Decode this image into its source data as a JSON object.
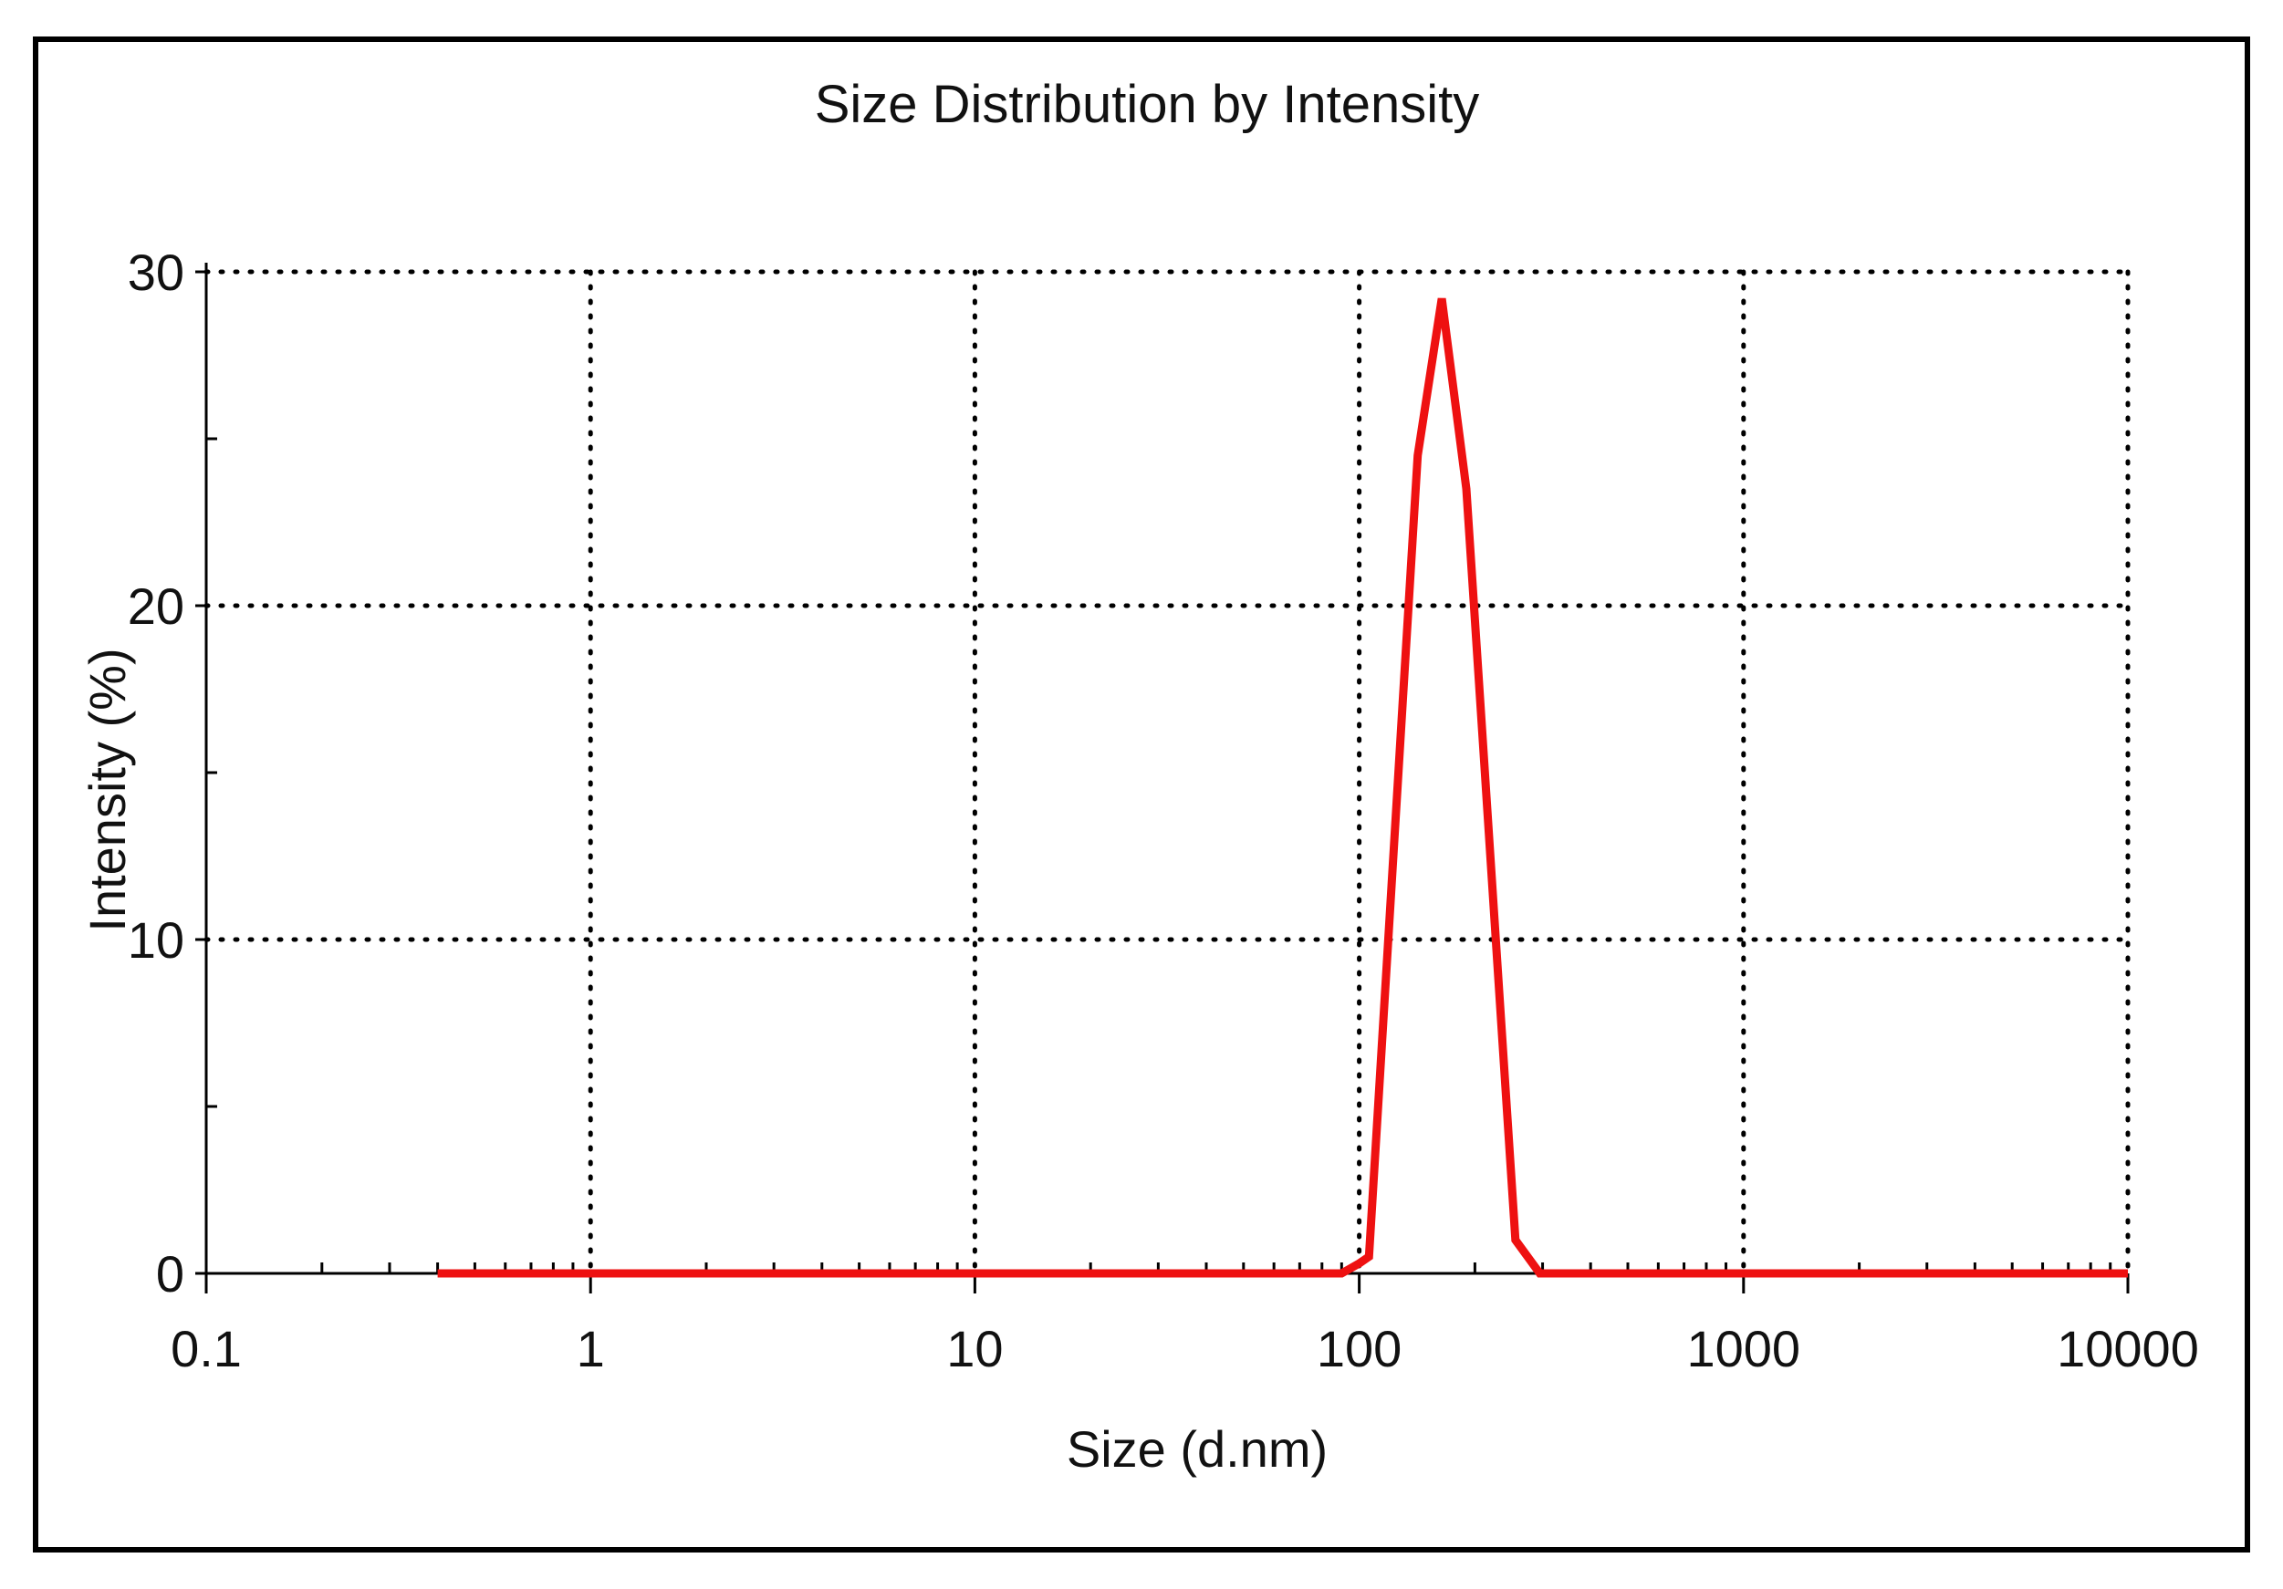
{
  "chart_data": {
    "type": "line",
    "title": "Size Distribution by Intensity",
    "xlabel": "Size (d.nm)",
    "ylabel": "Intensity (%)",
    "xscale": "log",
    "xlim": [
      0.1,
      10000
    ],
    "ylim": [
      0,
      30
    ],
    "x_ticks": [
      0.1,
      1,
      10,
      100,
      1000,
      10000
    ],
    "x_tick_labels": [
      "0.1",
      "1",
      "10",
      "100",
      "1000",
      "10000"
    ],
    "y_ticks": [
      0,
      10,
      20,
      30
    ],
    "y_tick_labels": [
      "0",
      "10",
      "20",
      "30"
    ],
    "grid": "dotted",
    "line_color": "#ee1111",
    "series": [
      {
        "name": "Intensity",
        "x": [
          0.4,
          90,
          100,
          106,
          142,
          164,
          190,
          255,
          295,
          10000
        ],
        "y": [
          0,
          0,
          0.3,
          0.5,
          24.5,
          29.2,
          23.5,
          1.0,
          0,
          0
        ]
      }
    ]
  }
}
